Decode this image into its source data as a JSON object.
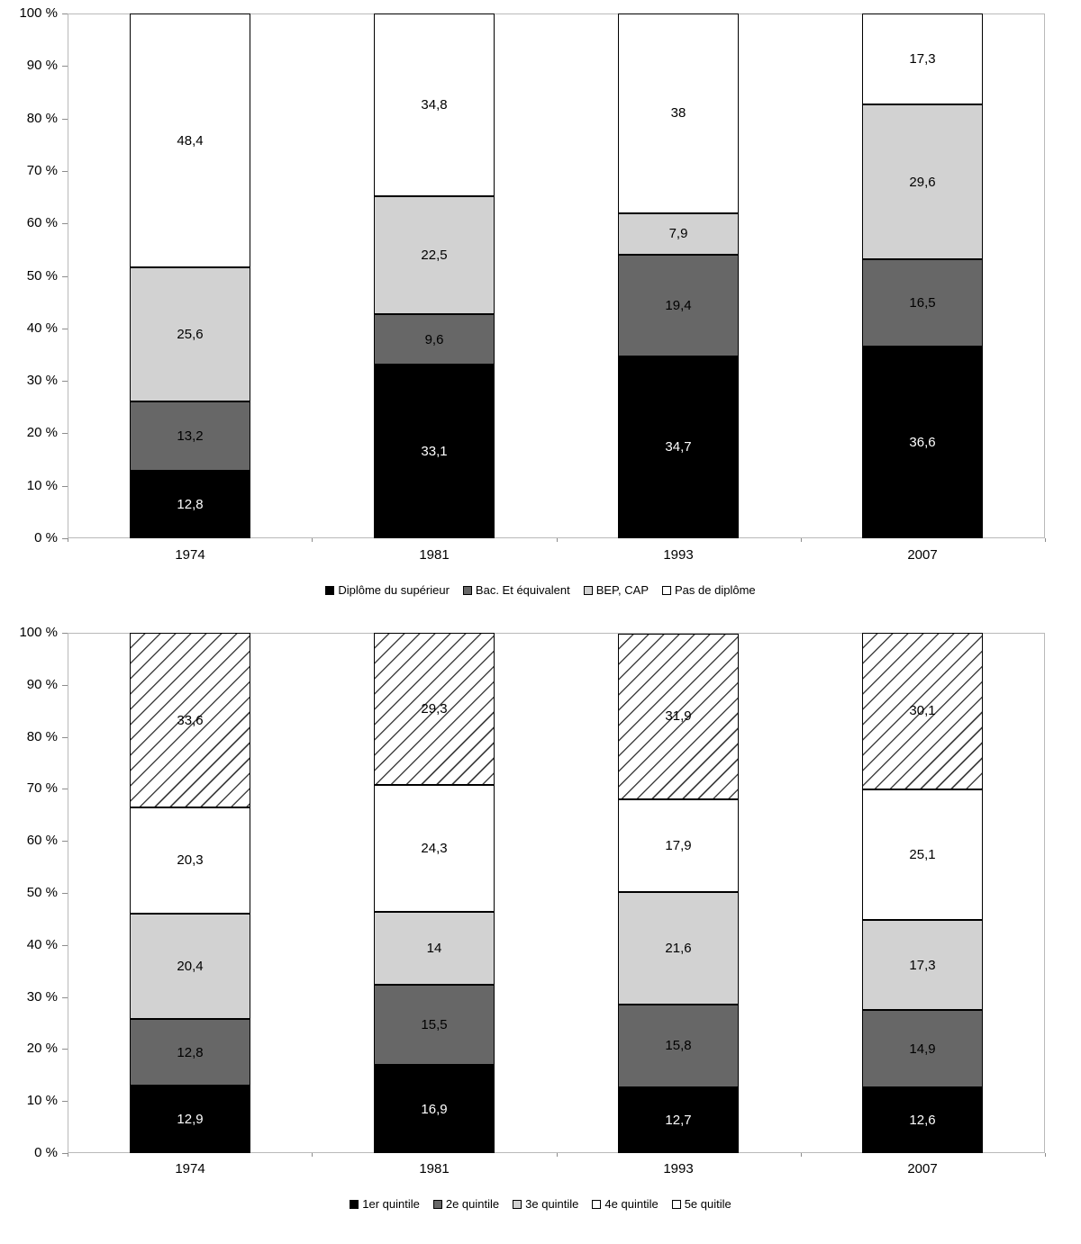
{
  "palette": {
    "plot_border": "#b9b9b9",
    "tick_color": "#8c8c8c",
    "text_color": "#000000",
    "hatch_line_color": "#444444",
    "hatch_background": "#ffffff"
  },
  "chart_data": [
    {
      "type": "stacked-bar",
      "title": "",
      "xlabel": "",
      "ylabel": "",
      "categories": [
        "1974",
        "1981",
        "1993",
        "2007"
      ],
      "y_ticks": [
        "0 %",
        "10 %",
        "20 %",
        "30 %",
        "40 %",
        "50 %",
        "60 %",
        "70 %",
        "80 %",
        "90 %",
        "100 %"
      ],
      "ylim": [
        0,
        100
      ],
      "grid": false,
      "legend_position": "bottom",
      "series": [
        {
          "name": "Diplôme du supérieur",
          "fill": "#000000",
          "legend_fill": "#000000",
          "text_color": "#ffffff",
          "pattern": "solid",
          "values": [
            12.8,
            33.1,
            34.7,
            36.6
          ],
          "labels": [
            "12,8",
            "33,1",
            "34,7",
            "36,6"
          ]
        },
        {
          "name": "Bac. Et équivalent",
          "fill": "#676767",
          "legend_fill": "#676767",
          "text_color": "#000000",
          "pattern": "solid",
          "values": [
            13.2,
            9.6,
            19.4,
            16.5
          ],
          "labels": [
            "13,2",
            "9,6",
            "19,4",
            "16,5"
          ]
        },
        {
          "name": "BEP, CAP",
          "fill": "#d2d2d2",
          "legend_fill": "#d2d2d2",
          "text_color": "#000000",
          "pattern": "solid",
          "values": [
            25.6,
            22.5,
            7.9,
            29.6
          ],
          "labels": [
            "25,6",
            "22,5",
            "7,9",
            "29,6"
          ]
        },
        {
          "name": "Pas de diplôme",
          "fill": "#ffffff",
          "legend_fill": "#ffffff",
          "text_color": "#000000",
          "pattern": "solid",
          "values": [
            48.4,
            34.8,
            38,
            17.3
          ],
          "labels": [
            "48,4",
            "34,8",
            "38",
            "17,3"
          ]
        }
      ]
    },
    {
      "type": "stacked-bar",
      "title": "",
      "xlabel": "",
      "ylabel": "",
      "categories": [
        "1974",
        "1981",
        "1993",
        "2007"
      ],
      "y_ticks": [
        "0 %",
        "10 %",
        "20 %",
        "30 %",
        "40 %",
        "50 %",
        "60 %",
        "70 %",
        "80 %",
        "90 %",
        "100 %"
      ],
      "ylim": [
        0,
        100
      ],
      "grid": false,
      "legend_position": "bottom",
      "series": [
        {
          "name": "1er quintile",
          "fill": "#000000",
          "legend_fill": "#000000",
          "text_color": "#ffffff",
          "pattern": "solid",
          "values": [
            12.9,
            16.9,
            12.7,
            12.6
          ],
          "labels": [
            "12,9",
            "16,9",
            "12,7",
            "12,6"
          ]
        },
        {
          "name": "2e quintile",
          "fill": "#676767",
          "legend_fill": "#676767",
          "text_color": "#000000",
          "pattern": "solid",
          "values": [
            12.8,
            15.5,
            15.8,
            14.9
          ],
          "labels": [
            "12,8",
            "15,5",
            "15,8",
            "14,9"
          ]
        },
        {
          "name": "3e quintile",
          "fill": "#d2d2d2",
          "legend_fill": "#d2d2d2",
          "text_color": "#000000",
          "pattern": "solid",
          "values": [
            20.4,
            14,
            21.6,
            17.3
          ],
          "labels": [
            "20,4",
            "14",
            "21,6",
            "17,3"
          ]
        },
        {
          "name": "4e quintile",
          "fill": "#ffffff",
          "legend_fill": "#ffffff",
          "text_color": "#000000",
          "pattern": "solid",
          "values": [
            20.3,
            24.3,
            17.9,
            25.1
          ],
          "labels": [
            "20,3",
            "24,3",
            "17,9",
            "25,1"
          ]
        },
        {
          "name": "5e quitile",
          "fill": "#ffffff",
          "legend_fill": "#ffffff",
          "text_color": "#000000",
          "pattern": "hatch",
          "values": [
            33.6,
            29.3,
            31.9,
            30.1
          ],
          "labels": [
            "33,6",
            "29,3",
            "31,9",
            "30,1"
          ]
        }
      ]
    }
  ]
}
